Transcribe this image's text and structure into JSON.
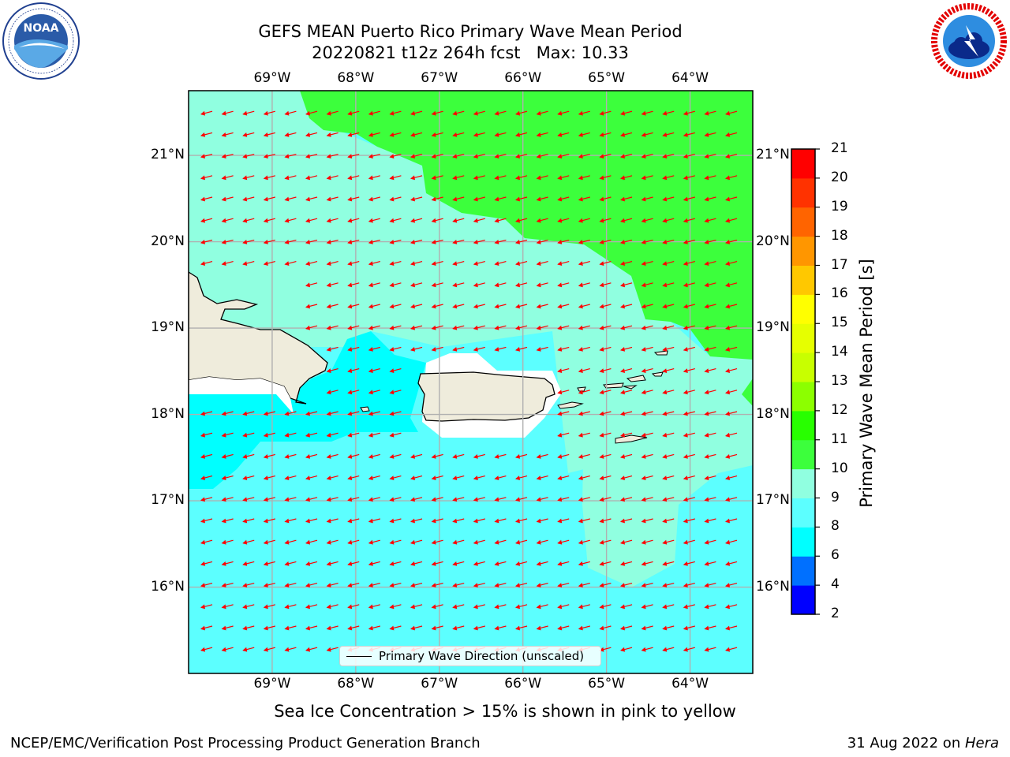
{
  "header": {
    "title": "GEFS MEAN Puerto Rico Primary Wave Mean Period",
    "subtitle": "20220821 t12z 264h fcst   Max: 10.33"
  },
  "logos": {
    "left": "noaa-logo",
    "right": "nws-logo"
  },
  "map": {
    "lon_labels": [
      "69°W",
      "68°W",
      "67°W",
      "66°W",
      "65°W",
      "64°W"
    ],
    "lat_labels": [
      "21°N",
      "20°N",
      "19°N",
      "18°N",
      "17°N",
      "16°N"
    ],
    "lon_range": [
      -70.0,
      -63.25
    ],
    "lat_range": [
      15.0,
      21.75
    ],
    "land_color": "#efecdc",
    "arrow_color": "#ff0000",
    "grid_color": "#b0b0b0"
  },
  "colorbar": {
    "label": "Primary Wave Mean Period [s]",
    "ticks": [
      "21",
      "20",
      "19",
      "18",
      "17",
      "16",
      "15",
      "14",
      "13",
      "12",
      "11",
      "10",
      "9",
      "8",
      "6",
      "4",
      "2"
    ],
    "levels": [
      2,
      4,
      6,
      8,
      9,
      10,
      11,
      12,
      13,
      14,
      15,
      16,
      17,
      18,
      19,
      20,
      21
    ],
    "colors": [
      "#0000ff",
      "#0070ff",
      "#00ffff",
      "#5cffff",
      "#90ffe0",
      "#3cff3c",
      "#28ff00",
      "#8cff00",
      "#c8ff00",
      "#e6ff00",
      "#ffff00",
      "#ffc800",
      "#ff9600",
      "#ff6400",
      "#ff3200",
      "#ff0000"
    ]
  },
  "legend": {
    "text": "Primary Wave Direction (unscaled)"
  },
  "note": "Sea Ice Concentration > 15% is shown in pink to yellow",
  "footer": {
    "left": "NCEP/EMC/Verification Post Processing Product Generation Branch",
    "date": "31 Aug 2022 on ",
    "host": "Hera"
  }
}
